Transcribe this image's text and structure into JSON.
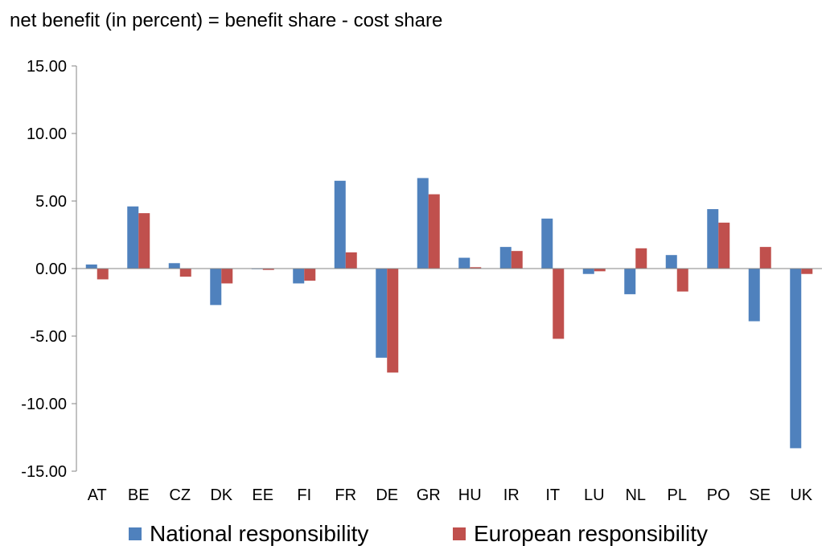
{
  "chart_data": {
    "type": "bar",
    "title": "net benefit (in percent) = benefit share - cost share",
    "xlabel": "",
    "ylabel": "",
    "ylim": [
      -15,
      15
    ],
    "yticks": [
      "15.00",
      "10.00",
      "5.00",
      "0.00",
      "-5.00",
      "-10.00",
      "-15.00"
    ],
    "grid": false,
    "legend_position": "bottom",
    "categories": [
      "AT",
      "BE",
      "CZ",
      "DK",
      "EE",
      "FI",
      "FR",
      "DE",
      "GR",
      "HU",
      "IR",
      "IT",
      "LU",
      "NL",
      "PL",
      "PO",
      "SE",
      "UK"
    ],
    "series": [
      {
        "name": "National responsibility",
        "color": "#4f81bd",
        "values": [
          0.3,
          4.6,
          0.4,
          -2.7,
          0.0,
          -1.1,
          6.5,
          -6.6,
          6.7,
          0.8,
          1.6,
          3.7,
          -0.4,
          -1.9,
          1.0,
          4.4,
          -3.9,
          -13.3
        ]
      },
      {
        "name": "European responsibility",
        "color": "#c0504d",
        "values": [
          -0.8,
          4.1,
          -0.6,
          -1.1,
          -0.1,
          -0.9,
          1.2,
          -7.7,
          5.5,
          0.1,
          1.3,
          -5.2,
          -0.2,
          1.5,
          -1.7,
          3.4,
          1.6,
          -0.4
        ]
      }
    ]
  }
}
